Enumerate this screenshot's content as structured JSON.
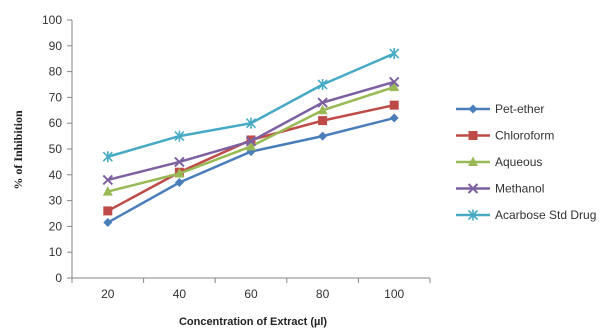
{
  "chart_data": {
    "type": "line",
    "xlabel": "Concentration of Extract (µl)",
    "ylabel": "% of Inhibition",
    "x": [
      20,
      40,
      60,
      80,
      100
    ],
    "ylim": [
      0,
      100
    ],
    "yticks": [
      0,
      10,
      20,
      30,
      40,
      50,
      60,
      70,
      80,
      90,
      100
    ],
    "grid": false,
    "legend_position": "right",
    "series": [
      {
        "name": "Pet-ether",
        "values": [
          21.5,
          37,
          49,
          55,
          62
        ],
        "color": "#4a7ebb",
        "marker": "diamond"
      },
      {
        "name": "Chloroform",
        "values": [
          26,
          41,
          53.5,
          61,
          67
        ],
        "color": "#be4b48",
        "marker": "square"
      },
      {
        "name": "Aqueous",
        "values": [
          33.5,
          40.5,
          51,
          65,
          74
        ],
        "color": "#98b954",
        "marker": "triangle"
      },
      {
        "name": "Methanol",
        "values": [
          38,
          45,
          53,
          68,
          76
        ],
        "color": "#7d60a0",
        "marker": "x"
      },
      {
        "name": "Acarbose Std Drug",
        "values": [
          47,
          55,
          60,
          75,
          87
        ],
        "color": "#46aac5",
        "marker": "star"
      }
    ]
  }
}
